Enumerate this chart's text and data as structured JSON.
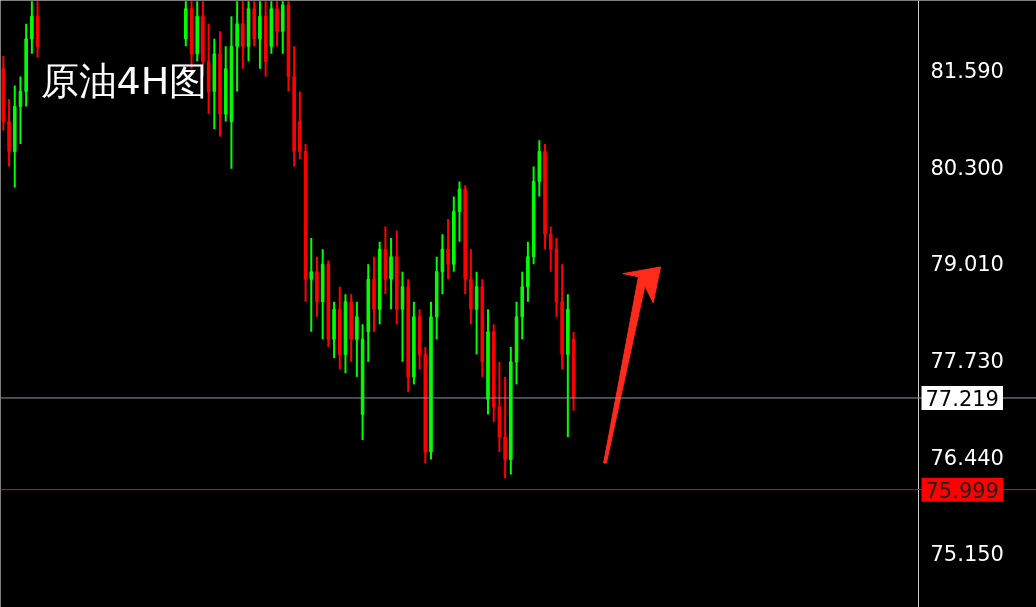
{
  "chart_data": {
    "type": "candlestick",
    "title": "原油4H图",
    "categories": [
      null,
      null,
      null,
      null,
      null,
      null,
      null,
      null,
      null,
      null,
      null,
      null,
      null,
      null,
      null,
      null,
      null,
      null,
      null,
      null,
      null,
      null,
      null,
      null,
      null,
      null,
      null,
      null,
      null,
      null,
      null,
      null,
      null,
      null,
      null,
      null,
      null,
      null,
      null,
      null,
      null,
      null,
      null,
      null,
      null,
      null,
      null,
      null,
      null,
      null,
      null,
      null,
      null,
      null,
      null,
      null,
      null,
      null,
      null,
      null,
      null,
      null,
      null,
      null,
      null,
      null,
      null,
      null,
      null,
      null,
      null,
      null,
      null,
      null,
      null,
      null,
      null,
      null,
      null,
      null,
      null,
      null,
      null,
      null,
      null,
      null,
      null,
      null,
      null,
      null,
      null,
      null,
      null,
      null,
      null,
      null,
      null,
      null,
      null,
      null,
      null,
      null,
      null,
      null,
      null,
      null,
      null,
      null,
      null,
      null,
      null,
      null,
      null,
      null,
      null,
      null,
      null,
      null,
      null,
      null,
      null,
      null,
      null,
      null,
      null,
      null,
      null,
      null,
      null,
      null,
      null,
      null,
      null,
      null,
      null,
      null,
      null,
      null,
      null,
      null,
      null,
      null,
      null,
      null,
      null,
      null,
      null,
      null,
      null,
      null,
      null,
      null,
      null,
      null,
      null,
      null,
      null,
      null,
      null,
      null,
      null
    ],
    "ohlc": [
      [
        81.6,
        81.77,
        80.78,
        80.9
      ],
      [
        80.9,
        81.2,
        80.3,
        80.5
      ],
      [
        80.5,
        81.38,
        80.02,
        81.1
      ],
      [
        81.1,
        81.5,
        80.6,
        81.3
      ],
      [
        81.3,
        82.2,
        81.1,
        82.0
      ],
      [
        82.0,
        82.5,
        81.8,
        82.3
      ],
      [
        82.3,
        82.5,
        81.75,
        81.9
      ],
      null,
      null,
      null,
      null,
      null,
      null,
      null,
      null,
      null,
      null,
      null,
      null,
      null,
      null,
      null,
      null,
      null,
      null,
      null,
      null,
      null,
      null,
      null,
      null,
      null,
      [
        82.0,
        82.5,
        81.9,
        82.4
      ],
      [
        82.4,
        82.5,
        81.6,
        81.8
      ],
      [
        81.8,
        82.5,
        81.7,
        82.3
      ],
      [
        82.3,
        82.5,
        81.5,
        81.7
      ],
      [
        81.7,
        82.2,
        81.0,
        81.3
      ],
      [
        81.3,
        82.0,
        80.8,
        81.8
      ],
      [
        81.8,
        82.1,
        80.7,
        81.0
      ],
      [
        81.0,
        81.9,
        80.9,
        81.6
      ],
      [
        80.9,
        82.3,
        80.27,
        81.9
      ],
      [
        81.9,
        82.5,
        81.3,
        82.2
      ],
      [
        82.2,
        82.5,
        81.6,
        81.9
      ],
      [
        81.9,
        82.5,
        81.7,
        82.4
      ],
      [
        82.4,
        82.5,
        81.9,
        82.0
      ],
      [
        82.0,
        82.5,
        81.6,
        82.3
      ],
      [
        82.3,
        82.5,
        81.5,
        81.7
      ],
      [
        81.9,
        82.5,
        81.8,
        82.4
      ],
      [
        82.4,
        82.5,
        81.9,
        82.1
      ],
      [
        82.1,
        82.5,
        81.8,
        82.45
      ],
      [
        82.45,
        82.5,
        81.3,
        81.5
      ],
      [
        81.5,
        81.9,
        80.3,
        80.5
      ],
      [
        80.9,
        81.3,
        80.4,
        80.5
      ],
      [
        80.5,
        80.6,
        78.5,
        78.8
      ],
      [
        78.8,
        79.35,
        78.1,
        78.9
      ],
      [
        78.9,
        79.1,
        78.3,
        78.5
      ],
      [
        78.5,
        79.2,
        78.0,
        79.0
      ],
      [
        79.0,
        79.05,
        77.9,
        78.0
      ],
      [
        78.0,
        78.5,
        77.75,
        78.4
      ],
      [
        78.4,
        78.7,
        77.6,
        77.8
      ],
      [
        77.8,
        78.6,
        77.55,
        78.5
      ],
      [
        78.5,
        78.6,
        77.7,
        78.0
      ],
      [
        78.0,
        78.5,
        77.5,
        78.3
      ],
      [
        77.0,
        78.2,
        76.66,
        78.0
      ],
      [
        78.1,
        79.0,
        77.7,
        78.8
      ],
      [
        78.8,
        79.1,
        78.1,
        78.4
      ],
      [
        78.4,
        79.3,
        78.2,
        79.2
      ],
      [
        79.2,
        79.5,
        78.6,
        78.8
      ],
      [
        78.8,
        79.35,
        78.4,
        79.1
      ],
      [
        79.1,
        79.45,
        78.2,
        78.4
      ],
      [
        78.4,
        78.9,
        77.7,
        78.7
      ],
      [
        78.7,
        78.8,
        77.3,
        77.5
      ],
      [
        77.5,
        78.5,
        77.4,
        78.3
      ],
      [
        78.3,
        78.4,
        77.6,
        77.8
      ],
      [
        77.8,
        77.9,
        76.35,
        76.5
      ],
      [
        76.5,
        78.5,
        76.4,
        78.3
      ],
      [
        78.3,
        79.1,
        78.0,
        78.9
      ],
      [
        78.9,
        79.4,
        78.6,
        79.2
      ],
      [
        79.2,
        79.6,
        78.8,
        79.0
      ],
      [
        79.0,
        79.9,
        78.9,
        79.7
      ],
      [
        79.7,
        80.1,
        79.3,
        80.0
      ],
      [
        80.0,
        80.05,
        78.6,
        78.8
      ],
      [
        78.8,
        79.2,
        78.2,
        78.4
      ],
      [
        78.4,
        78.9,
        77.8,
        78.7
      ],
      [
        78.7,
        78.8,
        77.5,
        77.7
      ],
      [
        77.2,
        78.4,
        77.0,
        78.1
      ],
      [
        78.1,
        78.2,
        76.9,
        77.1
      ],
      [
        77.1,
        77.7,
        76.5,
        76.7
      ],
      [
        76.7,
        77.5,
        76.15,
        76.4
      ],
      [
        76.4,
        77.9,
        76.2,
        77.7
      ],
      [
        77.7,
        78.5,
        77.4,
        78.3
      ],
      [
        78.3,
        78.9,
        78.0,
        78.7
      ],
      [
        78.7,
        79.3,
        78.5,
        79.1
      ],
      [
        79.1,
        80.3,
        79.0,
        80.1
      ],
      [
        80.1,
        80.65,
        79.9,
        80.5
      ],
      [
        80.5,
        80.6,
        79.2,
        79.4
      ],
      [
        79.4,
        79.5,
        78.9,
        79.2
      ],
      [
        79.2,
        79.35,
        78.3,
        78.5
      ],
      [
        78.5,
        79.0,
        77.6,
        77.8
      ],
      [
        77.8,
        78.6,
        76.7,
        78.4
      ],
      [
        78.0,
        78.1,
        77.05,
        77.22
      ],
      null,
      null,
      null,
      null,
      null,
      null,
      null,
      null,
      null,
      null,
      null,
      null,
      null,
      null,
      null,
      null,
      null,
      null,
      null,
      null,
      null,
      null,
      null,
      null,
      null,
      null,
      null,
      null,
      null,
      null,
      null,
      null,
      null,
      null,
      null,
      null,
      null,
      null,
      null,
      null,
      null,
      null,
      null,
      null,
      null,
      null,
      null,
      null,
      null,
      null,
      null,
      null,
      null,
      null,
      null,
      null,
      null,
      null,
      null,
      null
    ],
    "colors": [
      "#ff0000",
      "#ff0000",
      "#00ff00",
      "#00ff00",
      "#00ff00",
      "#00ff00",
      "#ff0000",
      null,
      null,
      null,
      null,
      null,
      null,
      null,
      null,
      null,
      null,
      null,
      null,
      null,
      null,
      null,
      null,
      null,
      null,
      null,
      null,
      null,
      null,
      null,
      null,
      null,
      "#00ff00",
      "#ff0000",
      "#00ff00",
      "#ff0000",
      "#ff0000",
      "#00ff00",
      "#ff0000",
      "#00ff00",
      "#00ff00",
      "#00ff00",
      "#ff0000",
      "#00ff00",
      "#ff0000",
      "#00ff00",
      "#ff0000",
      "#00ff00",
      "#ff0000",
      "#00ff00",
      "#ff0000",
      "#ff0000",
      "#ff0000",
      "#ff0000",
      "#00ff00",
      "#ff0000",
      "#00ff00",
      "#ff0000",
      "#00ff00",
      "#ff0000",
      "#00ff00",
      "#ff0000",
      "#00ff00",
      "#00ff00",
      "#00ff00",
      "#ff0000",
      "#00ff00",
      "#ff0000",
      "#00ff00",
      "#ff0000",
      "#00ff00",
      "#ff0000",
      "#00ff00",
      "#ff0000",
      "#ff0000",
      "#00ff00",
      "#00ff00",
      "#00ff00",
      "#ff0000",
      "#00ff00",
      "#00ff00",
      "#ff0000",
      "#ff0000",
      "#00ff00",
      "#ff0000",
      "#00ff00",
      "#ff0000",
      "#ff0000",
      "#ff0000",
      "#00ff00",
      "#00ff00",
      "#00ff00",
      "#00ff00",
      "#00ff00",
      "#00ff00",
      "#ff0000",
      "#ff0000",
      "#ff0000",
      "#ff0000",
      "#00ff00",
      "#ff0000",
      null,
      null,
      null,
      null,
      null,
      null,
      null,
      null,
      null,
      null,
      null,
      null,
      null,
      null,
      null,
      null,
      null,
      null,
      null,
      null,
      null,
      null,
      null,
      null,
      null,
      null,
      null,
      null,
      null,
      null,
      null,
      null,
      null,
      null,
      null,
      null,
      null,
      null,
      null,
      null,
      null,
      null,
      null,
      null,
      null,
      null,
      null,
      null,
      null,
      null,
      null,
      null,
      null,
      null,
      null,
      null,
      null,
      null,
      null,
      null
    ],
    "ylim": [
      74.43,
      82.51
    ],
    "yticks": [
      {
        "value": 75.15,
        "label": "75.150"
      },
      {
        "value": 76.44,
        "label": "76.440"
      },
      {
        "value": 77.73,
        "label": "77.730"
      },
      {
        "value": 79.01,
        "label": "79.010"
      },
      {
        "value": 80.3,
        "label": "80.300"
      },
      {
        "value": 81.59,
        "label": "81.590"
      }
    ],
    "ref_lines": [
      {
        "axis": "y",
        "value": 77.219,
        "label": "77.219",
        "color": "#8899aa"
      },
      {
        "axis": "y",
        "value": 75.999,
        "label": "75.999",
        "color": "#ff0000"
      }
    ],
    "tick_labels": "y",
    "grid": false
  }
}
